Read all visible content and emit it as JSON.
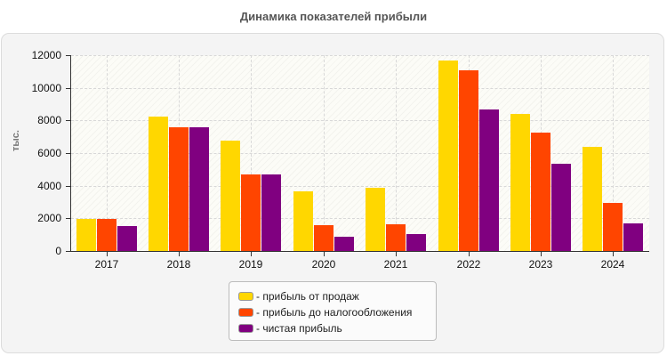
{
  "title": "Динамика показателей прибыли",
  "yaxis_title": "тыс.",
  "y_ticks": [
    "0",
    "2000",
    "4000",
    "6000",
    "8000",
    "10000",
    "12000"
  ],
  "legend": [
    {
      "label": "- прибыль от продаж",
      "color": "#ffd700"
    },
    {
      "label": "- прибыль до налогообложения",
      "color": "#ff4500"
    },
    {
      "label": "- чистая прибыль",
      "color": "#800080"
    }
  ],
  "chart_data": {
    "type": "bar",
    "title": "Динамика показателей прибыли",
    "xlabel": "",
    "ylabel": "тыс.",
    "ylim": [
      0,
      12000
    ],
    "grid": true,
    "legend_position": "bottom",
    "categories": [
      "2017",
      "2018",
      "2019",
      "2020",
      "2021",
      "2022",
      "2023",
      "2024"
    ],
    "series": [
      {
        "name": "прибыль от продаж",
        "color": "#ffd700",
        "values": [
          1950,
          8250,
          6750,
          3650,
          3880,
          11650,
          8400,
          6400
        ]
      },
      {
        "name": "прибыль до налогообложения",
        "color": "#ff4500",
        "values": [
          1950,
          7600,
          4700,
          1600,
          1650,
          11100,
          7250,
          2950
        ]
      },
      {
        "name": "чистая прибыль",
        "color": "#800080",
        "values": [
          1550,
          7600,
          4700,
          870,
          1050,
          8700,
          5350,
          1700
        ]
      }
    ]
  }
}
